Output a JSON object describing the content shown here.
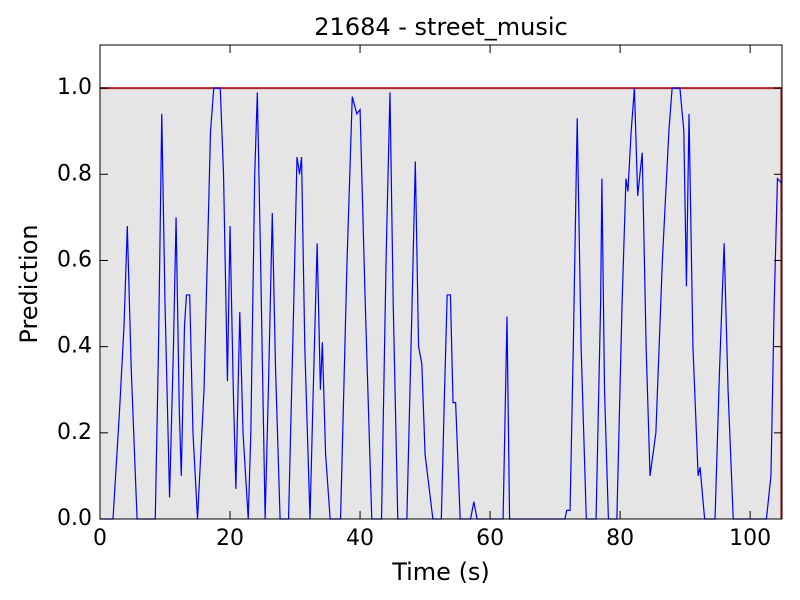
{
  "chart_data": {
    "type": "line",
    "title": "21684 - street_music",
    "xlabel": "Time (s)",
    "ylabel": "Prediction",
    "xlim": [
      0,
      104.9
    ],
    "ylim": [
      0,
      1.1
    ],
    "xticks": [
      0,
      20,
      40,
      60,
      80,
      100
    ],
    "yticks": [
      {
        "value": 0,
        "label": "0.0"
      },
      0.2,
      0.4,
      0.6,
      0.8,
      {
        "value": 1,
        "label": "1.0"
      }
    ],
    "shaded_region": {
      "x": [
        0,
        104.8
      ],
      "y": 1.0,
      "fill": "#e5e5e5",
      "edge_color": "#b22222"
    },
    "x": [
      0,
      2,
      3,
      3.7,
      4.2,
      4.8,
      5.7,
      8.5,
      9,
      9.5,
      10,
      10.7,
      11.3,
      11.7,
      12.2,
      12.5,
      13,
      13.3,
      13.8,
      14.3,
      15,
      16,
      17,
      17.5,
      18.5,
      19,
      19.6,
      20,
      20.5,
      20.9,
      21.5,
      22,
      22.8,
      23.2,
      23.8,
      24.2,
      24.7,
      25.4,
      25.9,
      26.5,
      27,
      27.7,
      29,
      29.8,
      30.3,
      30.7,
      31,
      31.5,
      32.3,
      32.8,
      33.4,
      33.9,
      34.2,
      34.7,
      35.4,
      37,
      38,
      38.8,
      39.5,
      40,
      40.8,
      41.8,
      43.3,
      44,
      44.6,
      45.1,
      45.8,
      47.2,
      48,
      48.5,
      49,
      49.5,
      50,
      51.2,
      52.5,
      53,
      53.4,
      53.9,
      54.3,
      54.7,
      55.4,
      57,
      57.5,
      58,
      62,
      62.6,
      63,
      71.5,
      71.8,
      72.3,
      72.8,
      73.4,
      74,
      74.8,
      76.3,
      77,
      77.2,
      77.6,
      78.2,
      79.5,
      80.3,
      80.9,
      81.2,
      81.7,
      82.2,
      82.7,
      83.4,
      84,
      84.6,
      85.5,
      86.5,
      87.5,
      88,
      89.2,
      89.8,
      90.2,
      90.6,
      91.2,
      92,
      92.3,
      93,
      94.6,
      95.3,
      96,
      96.6,
      97.4,
      102.5,
      103.2,
      103.7,
      104.2,
      104.8
    ],
    "series": [
      {
        "color": "#0000ff",
        "values": [
          0,
          0,
          0.25,
          0.45,
          0.68,
          0.35,
          0,
          0,
          0.4,
          0.94,
          0.5,
          0.05,
          0.4,
          0.7,
          0.25,
          0.1,
          0.45,
          0.52,
          0.52,
          0.2,
          0,
          0.3,
          0.9,
          1.0,
          1.0,
          0.8,
          0.32,
          0.68,
          0.3,
          0.07,
          0.48,
          0.2,
          0,
          0.2,
          0.8,
          0.99,
          0.6,
          0,
          0.3,
          0.71,
          0.35,
          0,
          0,
          0.5,
          0.84,
          0.8,
          0.84,
          0.4,
          0,
          0.3,
          0.64,
          0.3,
          0.41,
          0.15,
          0,
          0,
          0.6,
          0.98,
          0.94,
          0.95,
          0.5,
          0,
          0,
          0.6,
          0.99,
          0.5,
          0,
          0,
          0.5,
          0.83,
          0.4,
          0.36,
          0.15,
          0,
          0,
          0.3,
          0.52,
          0.52,
          0.27,
          0.27,
          0,
          0,
          0.04,
          0,
          0,
          0.47,
          0,
          0,
          0.02,
          0.02,
          0.4,
          0.93,
          0.4,
          0,
          0,
          0.5,
          0.79,
          0.3,
          0,
          0,
          0.5,
          0.79,
          0.76,
          0.9,
          1.0,
          0.75,
          0.85,
          0.4,
          0.1,
          0.2,
          0.6,
          0.9,
          1.0,
          1.0,
          0.9,
          0.54,
          0.94,
          0.4,
          0.1,
          0.12,
          0,
          0,
          0.35,
          0.64,
          0.3,
          0,
          0,
          0.1,
          0.5,
          0.79,
          0.78
        ]
      }
    ]
  }
}
